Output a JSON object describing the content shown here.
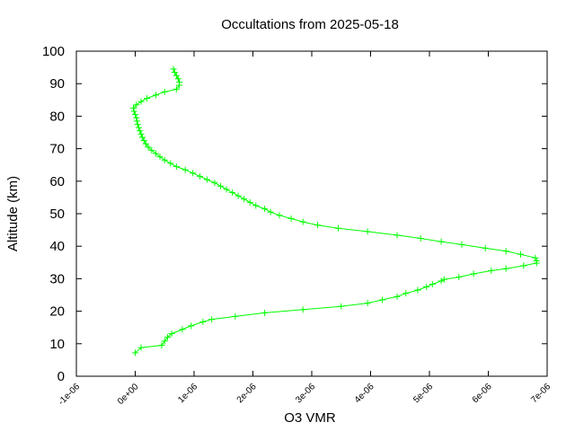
{
  "chart_data": {
    "type": "line",
    "title": "Occultations from 2025-05-18",
    "xlabel": "O3 VMR",
    "ylabel": "Altitude (km)",
    "xlim": [
      -1e-06,
      7e-06
    ],
    "ylim": [
      0,
      100
    ],
    "grid": false,
    "legend": "none",
    "x_ticks": [
      {
        "value": -1e-06,
        "label": "-1e-06"
      },
      {
        "value": 0,
        "label": "0e+00"
      },
      {
        "value": 1e-06,
        "label": "1e-06"
      },
      {
        "value": 2e-06,
        "label": "2e-06"
      },
      {
        "value": 3e-06,
        "label": "3e-06"
      },
      {
        "value": 4e-06,
        "label": "4e-06"
      },
      {
        "value": 5e-06,
        "label": "5e-06"
      },
      {
        "value": 6e-06,
        "label": "6e-06"
      },
      {
        "value": 7e-06,
        "label": "7e-06"
      }
    ],
    "y_ticks": [
      {
        "value": 0,
        "label": "0"
      },
      {
        "value": 10,
        "label": "10"
      },
      {
        "value": 20,
        "label": "20"
      },
      {
        "value": 30,
        "label": "30"
      },
      {
        "value": 40,
        "label": "40"
      },
      {
        "value": 50,
        "label": "50"
      },
      {
        "value": 60,
        "label": "60"
      },
      {
        "value": 70,
        "label": "70"
      },
      {
        "value": 80,
        "label": "80"
      },
      {
        "value": 90,
        "label": "90"
      },
      {
        "value": 100,
        "label": "100"
      }
    ],
    "series": [
      {
        "color": "#00ff00",
        "marker": "plus",
        "points": [
          [
            0.0,
            7.2
          ],
          [
            1e-07,
            8.8
          ],
          [
            4.5e-07,
            9.5
          ],
          [
            5e-07,
            10.8
          ],
          [
            5.5e-07,
            12.0
          ],
          [
            6.2e-07,
            13.1
          ],
          [
            8e-07,
            14.4
          ],
          [
            9.5e-07,
            15.5
          ],
          [
            1.15e-06,
            16.7
          ],
          [
            1.3e-06,
            17.5
          ],
          [
            1.7e-06,
            18.4
          ],
          [
            2.2e-06,
            19.5
          ],
          [
            2.85e-06,
            20.5
          ],
          [
            3.5e-06,
            21.5
          ],
          [
            3.95e-06,
            22.5
          ],
          [
            4.2e-06,
            23.5
          ],
          [
            4.45e-06,
            24.5
          ],
          [
            4.6e-06,
            25.5
          ],
          [
            4.8e-06,
            26.5
          ],
          [
            4.95e-06,
            27.5
          ],
          [
            5.05e-06,
            28.3
          ],
          [
            5.2e-06,
            29.3
          ],
          [
            5.25e-06,
            29.8
          ],
          [
            5.5e-06,
            30.5
          ],
          [
            5.75e-06,
            31.5
          ],
          [
            6.05e-06,
            32.5
          ],
          [
            6.3e-06,
            33.1
          ],
          [
            6.6e-06,
            34.0
          ],
          [
            6.82e-06,
            34.8
          ],
          [
            6.82e-06,
            35.5
          ],
          [
            6.8e-06,
            36.4
          ],
          [
            6.55e-06,
            37.5
          ],
          [
            6.3e-06,
            38.5
          ],
          [
            5.95e-06,
            39.4
          ],
          [
            5.55e-06,
            40.5
          ],
          [
            5.2e-06,
            41.4
          ],
          [
            4.85e-06,
            42.4
          ],
          [
            4.45e-06,
            43.4
          ],
          [
            3.95e-06,
            44.5
          ],
          [
            3.45e-06,
            45.5
          ],
          [
            3.1e-06,
            46.5
          ],
          [
            2.85e-06,
            47.5
          ],
          [
            2.65e-06,
            48.5
          ],
          [
            2.45e-06,
            49.5
          ],
          [
            2.3e-06,
            50.5
          ],
          [
            2.2e-06,
            51.5
          ],
          [
            2.05e-06,
            52.5
          ],
          [
            1.95e-06,
            53.5
          ],
          [
            1.85e-06,
            54.5
          ],
          [
            1.75e-06,
            55.5
          ],
          [
            1.65e-06,
            56.5
          ],
          [
            1.55e-06,
            57.5
          ],
          [
            1.45e-06,
            58.5
          ],
          [
            1.35e-06,
            59.5
          ],
          [
            1.22e-06,
            60.5
          ],
          [
            1.1e-06,
            61.5
          ],
          [
            9.8e-07,
            62.5
          ],
          [
            8.5e-07,
            63.5
          ],
          [
            7e-07,
            64.5
          ],
          [
            6e-07,
            65.5
          ],
          [
            5e-07,
            66.5
          ],
          [
            4.2e-07,
            67.5
          ],
          [
            3.5e-07,
            68.5
          ],
          [
            2.8e-07,
            69.5
          ],
          [
            2.2e-07,
            70.5
          ],
          [
            1.8e-07,
            71.5
          ],
          [
            1.5e-07,
            72.5
          ],
          [
            1.2e-07,
            73.5
          ],
          [
            1e-07,
            74.5
          ],
          [
            8e-08,
            75.5
          ],
          [
            6e-08,
            76.5
          ],
          [
            4e-08,
            77.5
          ],
          [
            3e-08,
            78.5
          ],
          [
            2e-08,
            79.5
          ],
          [
            0.0,
            80.5
          ],
          [
            -2e-08,
            81.5
          ],
          [
            -3e-08,
            82.5
          ],
          [
            2e-08,
            83.5
          ],
          [
            1e-07,
            84.5
          ],
          [
            2e-07,
            85.5
          ],
          [
            3.5e-07,
            86.5
          ],
          [
            5e-07,
            87.5
          ],
          [
            7e-07,
            88.3
          ],
          [
            7.5e-07,
            89.5
          ],
          [
            7.5e-07,
            90.5
          ],
          [
            7.3e-07,
            91.5
          ],
          [
            7e-07,
            92.5
          ],
          [
            6.7e-07,
            93.5
          ],
          [
            6.5e-07,
            94.5
          ]
        ]
      }
    ]
  }
}
